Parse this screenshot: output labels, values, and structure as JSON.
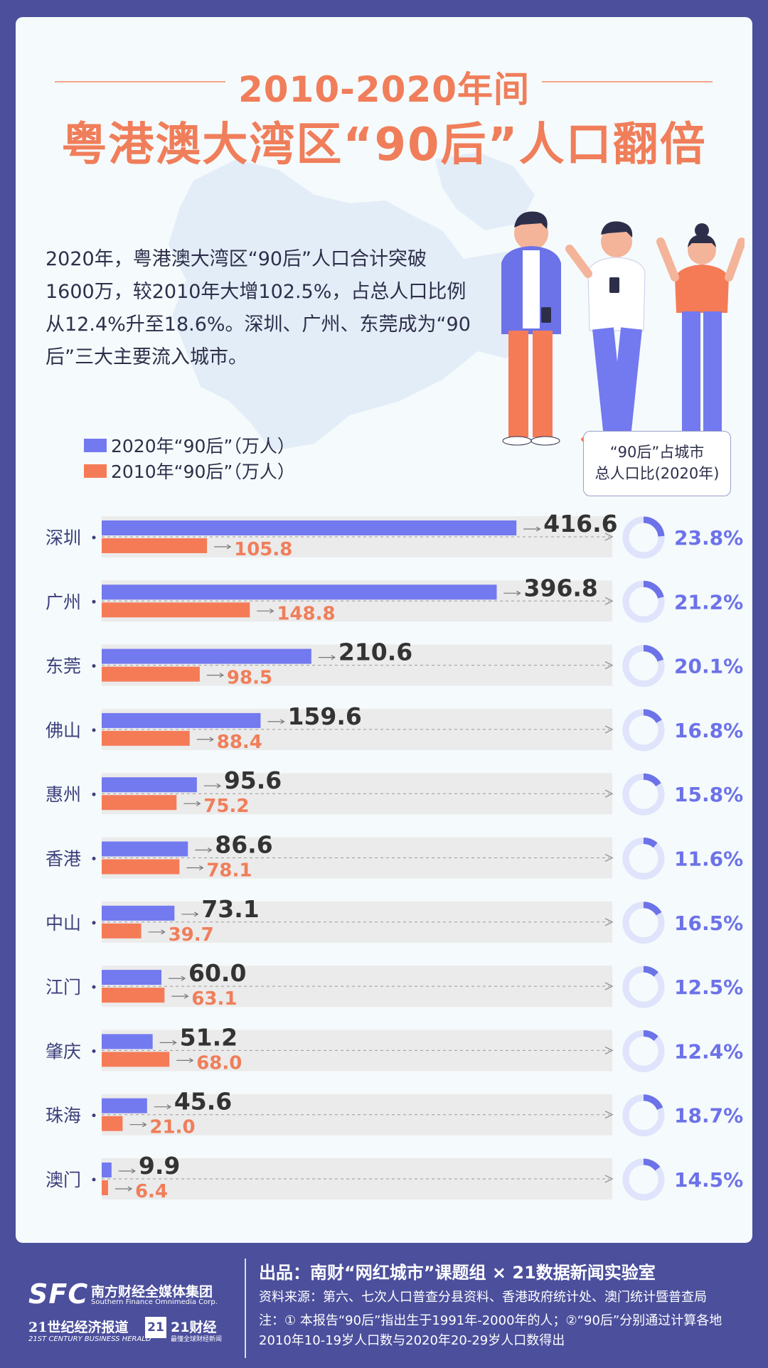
{
  "title": {
    "line1": "2010-2020年间",
    "line2": "粤港澳大湾区“90后”人口翻倍"
  },
  "intro": "2020年，粤港澳大湾区“90后”人口合计突破1600万，较2010年大增102.5%，占总人口比例从12.4%升至18.6%。深圳、广州、东莞成为“90后”三大主要流入城市。",
  "legend": {
    "series_2020": "2020年“90后”（万人）",
    "series_2010": "2010年“90后”（万人）"
  },
  "ratio_header": {
    "line1": "“90后”占城市",
    "line2": "总人口比(2020年)"
  },
  "colors": {
    "series_2020": "#7379ef",
    "series_2010": "#f57b57",
    "title": "#f07e5a",
    "frame": "#4b4f9c",
    "track": "#ebebeb",
    "donut_track": "#dfe3fb",
    "donut_fill": "#6c72e8"
  },
  "chart_data": {
    "type": "bar",
    "orientation": "horizontal",
    "categories": [
      "深圳",
      "广州",
      "东莞",
      "佛山",
      "惠州",
      "香港",
      "中山",
      "江门",
      "肇庆",
      "珠海",
      "澳门"
    ],
    "series": [
      {
        "name": "2020年“90后”（万人）",
        "values": [
          416.6,
          396.8,
          210.6,
          159.6,
          95.6,
          86.6,
          73.1,
          60.0,
          51.2,
          45.6,
          9.9
        ]
      },
      {
        "name": "2010年“90后”（万人）",
        "values": [
          105.8,
          148.8,
          98.5,
          88.4,
          75.2,
          78.1,
          39.7,
          63.1,
          68.0,
          21.0,
          6.4
        ]
      }
    ],
    "labels_2020": [
      "416.6",
      "396.8",
      "210.6",
      "159.6",
      "95.6",
      "86.6",
      "73.1",
      "60.0",
      "51.2",
      "45.6",
      "9.9"
    ],
    "labels_2010": [
      "105.8",
      "148.8",
      "98.5",
      "88.4",
      "75.2",
      "78.1",
      "39.7",
      "63.1",
      "68.0",
      "21.0",
      "6.4"
    ],
    "share_2020_pct": [
      23.8,
      21.2,
      20.1,
      16.8,
      15.8,
      11.6,
      16.5,
      12.5,
      12.4,
      18.7,
      14.5
    ],
    "share_labels": [
      "23.8%",
      "21.2%",
      "20.1%",
      "16.8%",
      "15.8%",
      "11.6%",
      "16.5%",
      "12.5%",
      "12.4%",
      "18.7%",
      "14.5%"
    ],
    "xlim": [
      0,
      500
    ],
    "grid": false,
    "legend_position": "top-left"
  },
  "footer": {
    "logo_sfc": "SFC",
    "logo_sfc_cn": "南方财经全媒体集团",
    "logo_sfc_en": "Southern Finance Omnimedia Corp.",
    "logo_21": "21世纪经济报道",
    "logo_21_en": "21ST CENTURY BUSINESS HERALD",
    "logo_21box": "21",
    "logo_21cf": "21财经",
    "logo_21cf_sub": "最懂全球财经新闻",
    "credit": "出品：南财“网红城市”课题组 × 21数据新闻实验室",
    "source": "资料来源：第六、七次人口普查分县资料、香港政府统计处、澳门统计暨普查局",
    "note": "注：① 本报告“90后”指出生于1991年-2000年的人；②“90后”分别通过计算各地2010年10-19岁人口数与2020年20-29岁人口数得出"
  }
}
